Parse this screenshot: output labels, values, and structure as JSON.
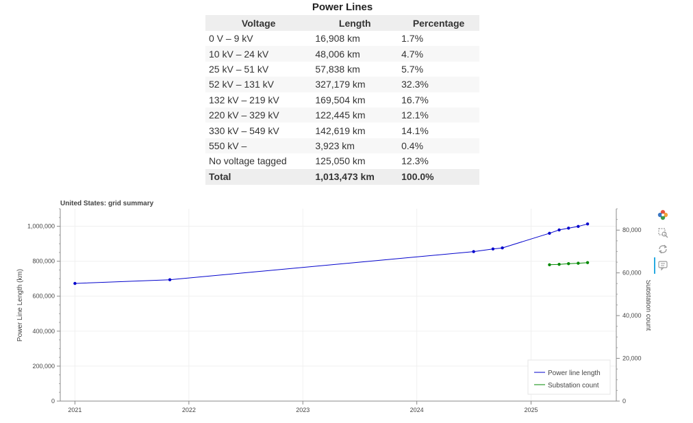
{
  "table": {
    "title": "Power Lines",
    "headers": [
      "Voltage",
      "Length",
      "Percentage"
    ],
    "rows": [
      [
        "0 V – 9 kV",
        "16,908 km",
        "1.7%"
      ],
      [
        "10 kV – 24 kV",
        "48,006 km",
        "4.7%"
      ],
      [
        "25 kV – 51 kV",
        "57,838 km",
        "5.7%"
      ],
      [
        "52 kV – 131 kV",
        "327,179 km",
        "32.3%"
      ],
      [
        "132 kV – 219 kV",
        "169,504 km",
        "16.7%"
      ],
      [
        "220 kV – 329 kV",
        "122,445 km",
        "12.1%"
      ],
      [
        "330 kV – 549 kV",
        "142,619 km",
        "14.1%"
      ],
      [
        "550 kV –",
        "3,923 km",
        "0.4%"
      ],
      [
        "No voltage tagged",
        "125,050 km",
        "12.3%"
      ]
    ],
    "total": [
      "Total",
      "1,013,473 km",
      "100.0%"
    ]
  },
  "toolbar": {
    "icons": [
      "bokeh-logo-icon",
      "box-zoom-icon",
      "reset-icon",
      "hover-icon"
    ]
  },
  "chart_data": {
    "type": "line",
    "title": "United States: grid summary",
    "ylabel": "Power Line Length (km)",
    "y2label": "Substation count",
    "xlim": [
      "2020-11-15",
      "2025-10-01"
    ],
    "ylim": [
      0,
      1100000
    ],
    "y2lim": [
      0,
      90000
    ],
    "x_ticks": [
      "2021",
      "2022",
      "2023",
      "2024",
      "2025"
    ],
    "y_ticks": [
      "0",
      "200,000",
      "400,000",
      "600,000",
      "800,000",
      "1,000,000"
    ],
    "y2_ticks": [
      "0",
      "20,000",
      "40,000",
      "60,000",
      "80,000"
    ],
    "grid": true,
    "legend_position": "bottom-right",
    "series": [
      {
        "name": "Power line length",
        "color": "#0000cc",
        "axis": "left",
        "points": [
          [
            "2021-01-01",
            673000
          ],
          [
            "2021-11-01",
            694000
          ],
          [
            "2024-07-01",
            855000
          ],
          [
            "2024-09-01",
            870000
          ],
          [
            "2024-10-01",
            876000
          ],
          [
            "2025-03-01",
            960000
          ],
          [
            "2025-04-01",
            979000
          ],
          [
            "2025-05-01",
            989000
          ],
          [
            "2025-06-01",
            999000
          ],
          [
            "2025-07-01",
            1013000
          ]
        ]
      },
      {
        "name": "Substation count",
        "color": "#008800",
        "axis": "right",
        "points": [
          [
            "2025-03-01",
            63800
          ],
          [
            "2025-04-01",
            64000
          ],
          [
            "2025-05-01",
            64300
          ],
          [
            "2025-06-01",
            64500
          ],
          [
            "2025-07-01",
            64800
          ]
        ]
      }
    ]
  }
}
